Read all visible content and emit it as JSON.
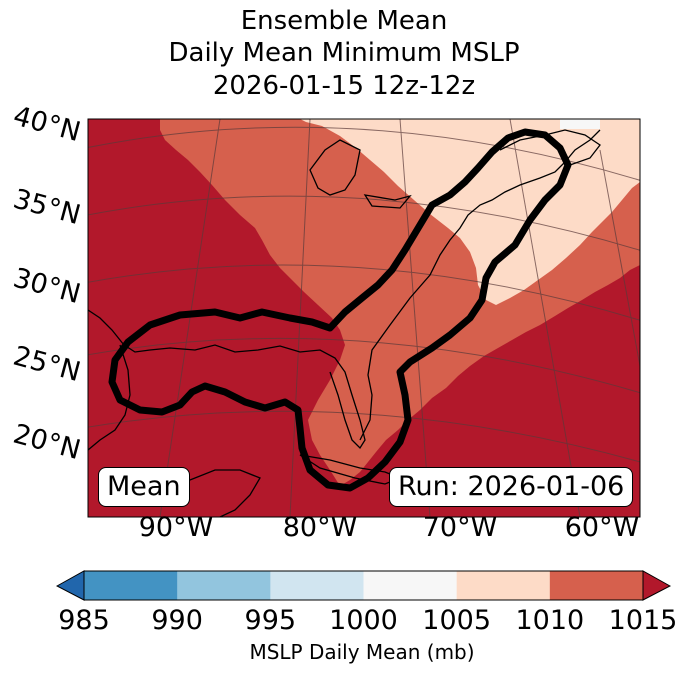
{
  "title": {
    "line1": "Ensemble Mean",
    "line2": "Daily Mean Minimum MSLP",
    "line3": "2026-01-15 12z-12z"
  },
  "map": {
    "lat_labels": [
      "40°N",
      "35°N",
      "30°N",
      "25°N",
      "20°N"
    ],
    "lon_labels": [
      "90°W",
      "80°W",
      "70°W",
      "60°W"
    ],
    "mean_label": "Mean",
    "run_label": "Run: 2026-01-06",
    "colors": {
      "band_1015": "#b2182b",
      "band_1010": "#d6604d",
      "band_1005": "#fddbc7",
      "band_1000": "#f7f7f7",
      "contour": "#000000",
      "coast": "#000000",
      "grid": "#5a3a3a"
    }
  },
  "colorbar": {
    "ticks": [
      "985",
      "990",
      "995",
      "1000",
      "1005",
      "1010",
      "1015"
    ],
    "colors": [
      "#4393c3",
      "#92c5de",
      "#d1e5f0",
      "#f7f7f7",
      "#fddbc7",
      "#d6604d"
    ],
    "under_color": "#2166ac",
    "over_color": "#b2182b",
    "label": "MSLP Daily Mean (mb)"
  }
}
